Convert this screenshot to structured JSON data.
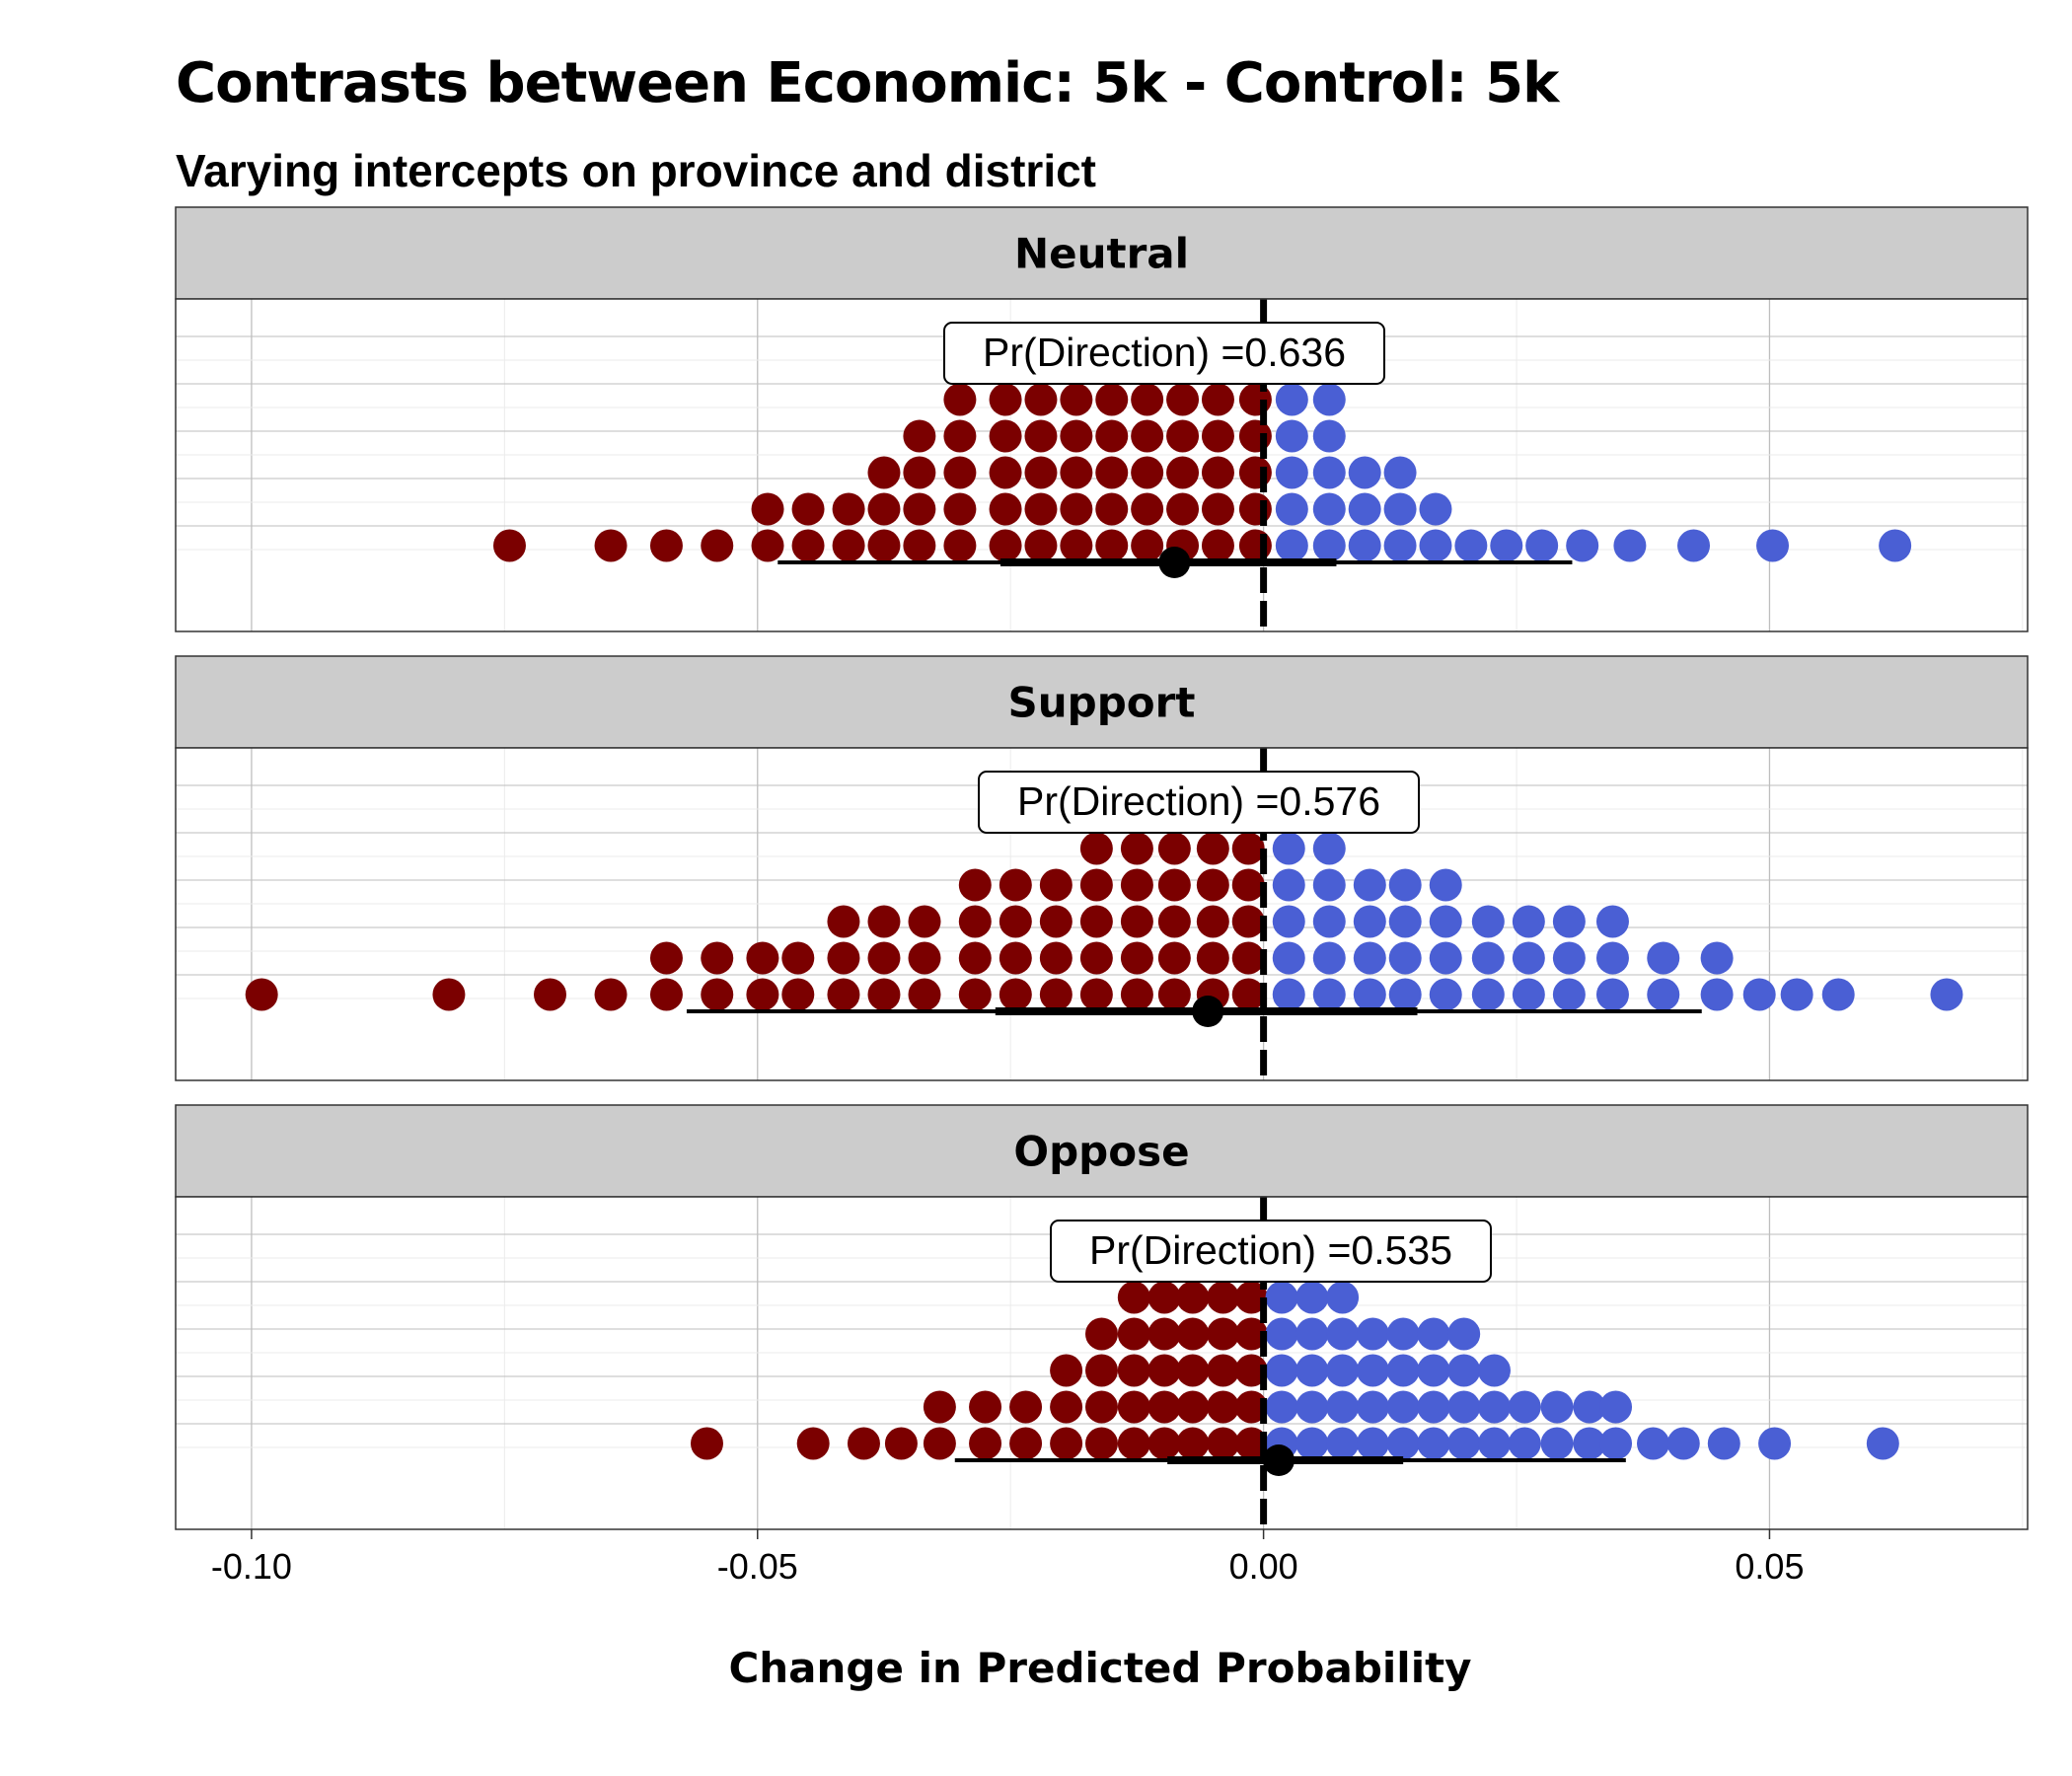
{
  "title": "Contrasts between Economic: 5k - Control: 5k",
  "subtitle": "Varying intercepts on province and district",
  "colors": {
    "negative": "#7B0000",
    "positive": "#4A5FD4",
    "strip_bg": "#CCCCCC",
    "grid": "#BEBEBE"
  },
  "chart_data": {
    "type": "dotplot",
    "xlabel": "Change in Predicted Probability",
    "xlim": [
      -0.1075,
      0.0755
    ],
    "xticks": [
      -0.1,
      -0.05,
      0.0,
      0.05
    ],
    "xtick_labels": [
      "-0.10",
      "-0.05",
      "0.00",
      "0.05"
    ],
    "reference_line_x": 0,
    "grid": true,
    "panels": [
      {
        "name": "Neutral",
        "pr_direction_label": "Pr(Direction) =0.636",
        "median": -0.0088,
        "interval_66": [
          -0.026,
          0.0072
        ],
        "interval_95": [
          -0.048,
          0.0305
        ],
        "stacks": [
          {
            "x": -0.0745,
            "n": 1
          },
          {
            "x": -0.0645,
            "n": 1
          },
          {
            "x": -0.059,
            "n": 1
          },
          {
            "x": -0.054,
            "n": 1
          },
          {
            "x": -0.049,
            "n": 2
          },
          {
            "x": -0.045,
            "n": 2
          },
          {
            "x": -0.041,
            "n": 2
          },
          {
            "x": -0.0375,
            "n": 3
          },
          {
            "x": -0.034,
            "n": 4
          },
          {
            "x": -0.03,
            "n": 5
          },
          {
            "x": -0.0255,
            "n": 6
          },
          {
            "x": -0.022,
            "n": 5
          },
          {
            "x": -0.0185,
            "n": 5
          },
          {
            "x": -0.015,
            "n": 5
          },
          {
            "x": -0.0115,
            "n": 6
          },
          {
            "x": -0.008,
            "n": 5
          },
          {
            "x": -0.0045,
            "n": 6
          },
          {
            "x": -0.0008,
            "n": 5
          },
          {
            "x": 0.0028,
            "n": 6
          },
          {
            "x": 0.0065,
            "n": 6
          },
          {
            "x": 0.01,
            "n": 3
          },
          {
            "x": 0.0135,
            "n": 3
          },
          {
            "x": 0.017,
            "n": 2
          },
          {
            "x": 0.0205,
            "n": 1
          },
          {
            "x": 0.024,
            "n": 1
          },
          {
            "x": 0.0275,
            "n": 1
          },
          {
            "x": 0.0315,
            "n": 1
          },
          {
            "x": 0.0362,
            "n": 1
          },
          {
            "x": 0.0425,
            "n": 1
          },
          {
            "x": 0.0503,
            "n": 1
          },
          {
            "x": 0.0624,
            "n": 1
          }
        ]
      },
      {
        "name": "Support",
        "pr_direction_label": "Pr(Direction) =0.576",
        "median": -0.0055,
        "interval_66": [
          -0.0265,
          0.0152
        ],
        "interval_95": [
          -0.057,
          0.0433
        ],
        "stacks": [
          {
            "x": -0.099,
            "n": 1
          },
          {
            "x": -0.0805,
            "n": 1
          },
          {
            "x": -0.0705,
            "n": 1
          },
          {
            "x": -0.0645,
            "n": 1
          },
          {
            "x": -0.059,
            "n": 2
          },
          {
            "x": -0.054,
            "n": 2
          },
          {
            "x": -0.0495,
            "n": 2
          },
          {
            "x": -0.046,
            "n": 2
          },
          {
            "x": -0.0415,
            "n": 3
          },
          {
            "x": -0.0375,
            "n": 3
          },
          {
            "x": -0.0335,
            "n": 3
          },
          {
            "x": -0.0285,
            "n": 4
          },
          {
            "x": -0.0245,
            "n": 4
          },
          {
            "x": -0.0205,
            "n": 4
          },
          {
            "x": -0.0165,
            "n": 5
          },
          {
            "x": -0.0125,
            "n": 5
          },
          {
            "x": -0.0088,
            "n": 5
          },
          {
            "x": -0.005,
            "n": 5
          },
          {
            "x": -0.0015,
            "n": 5
          },
          {
            "x": 0.0025,
            "n": 5
          },
          {
            "x": 0.0065,
            "n": 5
          },
          {
            "x": 0.0105,
            "n": 4
          },
          {
            "x": 0.014,
            "n": 4
          },
          {
            "x": 0.018,
            "n": 4
          },
          {
            "x": 0.0222,
            "n": 3
          },
          {
            "x": 0.0262,
            "n": 3
          },
          {
            "x": 0.0302,
            "n": 3
          },
          {
            "x": 0.0345,
            "n": 3
          },
          {
            "x": 0.0395,
            "n": 2
          },
          {
            "x": 0.0448,
            "n": 2
          },
          {
            "x": 0.049,
            "n": 1
          },
          {
            "x": 0.0527,
            "n": 1
          },
          {
            "x": 0.0568,
            "n": 1
          },
          {
            "x": 0.0675,
            "n": 1
          }
        ]
      },
      {
        "name": "Oppose",
        "pr_direction_label": "Pr(Direction) =0.535",
        "median": 0.0015,
        "interval_66": [
          -0.0095,
          0.0138
        ],
        "interval_95": [
          -0.0305,
          0.0358
        ],
        "stacks": [
          {
            "x": -0.055,
            "n": 1
          },
          {
            "x": -0.0445,
            "n": 1
          },
          {
            "x": -0.0395,
            "n": 1
          },
          {
            "x": -0.0358,
            "n": 1
          },
          {
            "x": -0.032,
            "n": 2
          },
          {
            "x": -0.0275,
            "n": 2
          },
          {
            "x": -0.0235,
            "n": 2
          },
          {
            "x": -0.0195,
            "n": 3
          },
          {
            "x": -0.016,
            "n": 4
          },
          {
            "x": -0.0128,
            "n": 5
          },
          {
            "x": -0.0098,
            "n": 6
          },
          {
            "x": -0.007,
            "n": 6
          },
          {
            "x": -0.004,
            "n": 6
          },
          {
            "x": -0.0012,
            "n": 6
          },
          {
            "x": 0.0018,
            "n": 6
          },
          {
            "x": 0.0048,
            "n": 6
          },
          {
            "x": 0.0078,
            "n": 5
          },
          {
            "x": 0.0108,
            "n": 4
          },
          {
            "x": 0.0138,
            "n": 4
          },
          {
            "x": 0.0168,
            "n": 4
          },
          {
            "x": 0.0198,
            "n": 4
          },
          {
            "x": 0.0228,
            "n": 3
          },
          {
            "x": 0.0258,
            "n": 2
          },
          {
            "x": 0.029,
            "n": 2
          },
          {
            "x": 0.0322,
            "n": 2
          },
          {
            "x": 0.0348,
            "n": 2
          },
          {
            "x": 0.0385,
            "n": 1
          },
          {
            "x": 0.0415,
            "n": 1
          },
          {
            "x": 0.0455,
            "n": 1
          },
          {
            "x": 0.0505,
            "n": 1
          },
          {
            "x": 0.0612,
            "n": 1
          }
        ]
      }
    ]
  }
}
